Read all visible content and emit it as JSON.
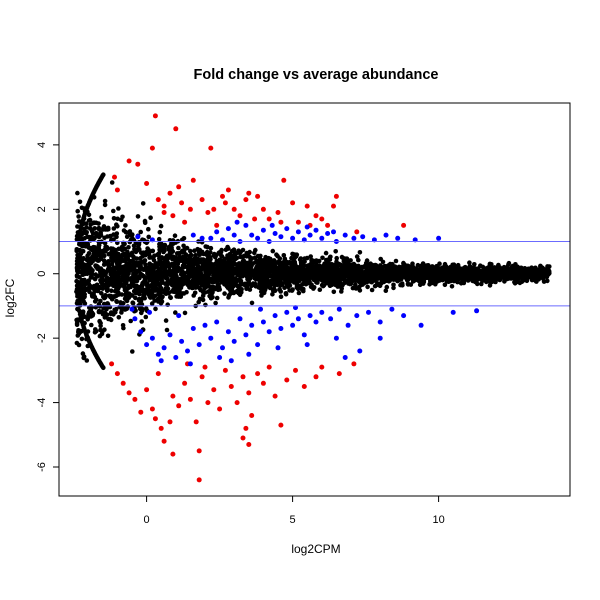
{
  "chart_data": {
    "type": "scatter",
    "title": "Fold change vs average abundance",
    "xlabel": "log2CPM",
    "ylabel": "log2FC",
    "xlim": [
      -3,
      14.5
    ],
    "ylim": [
      -6.9,
      5.3
    ],
    "x_ticks": [
      0,
      5,
      10
    ],
    "y_ticks": [
      -6,
      -4,
      -2,
      0,
      2,
      4
    ],
    "x_tick_labels": [
      "0",
      "5",
      "10"
    ],
    "y_tick_labels": [
      "-6",
      "-4",
      "-2",
      "0",
      "2",
      "4"
    ],
    "hlines": [
      1,
      -1
    ],
    "hline_color": "#6b6bff",
    "grid": false,
    "legend": "none",
    "colors": {
      "ns": "#000000",
      "fc_sig": "#0000ff",
      "strong": "#ee0000"
    },
    "groups": [
      {
        "key": "ns",
        "description_visible": false
      },
      {
        "key": "fc_sig",
        "description_visible": false
      },
      {
        "key": "strong",
        "description_visible": false
      }
    ],
    "series": [
      {
        "color_key": "strong",
        "points": [
          [
            -1.1,
            3.0
          ],
          [
            -1.0,
            2.6
          ],
          [
            -0.6,
            3.5
          ],
          [
            -0.3,
            3.4
          ],
          [
            0.2,
            3.9
          ],
          [
            0.3,
            4.9
          ],
          [
            1.0,
            4.5
          ],
          [
            2.2,
            3.9
          ],
          [
            0.0,
            2.8
          ],
          [
            0.4,
            2.3
          ],
          [
            0.6,
            2.1
          ],
          [
            0.8,
            2.5
          ],
          [
            1.1,
            2.7
          ],
          [
            1.2,
            2.2
          ],
          [
            1.5,
            2.0
          ],
          [
            1.6,
            2.9
          ],
          [
            1.9,
            2.3
          ],
          [
            2.1,
            1.9
          ],
          [
            2.3,
            2.0
          ],
          [
            2.6,
            2.4
          ],
          [
            2.8,
            2.6
          ],
          [
            3.0,
            2.0
          ],
          [
            3.2,
            1.8
          ],
          [
            3.4,
            2.3
          ],
          [
            3.5,
            2.5
          ],
          [
            3.8,
            2.4
          ],
          [
            4.0,
            2.0
          ],
          [
            4.2,
            1.7
          ],
          [
            4.5,
            1.9
          ],
          [
            4.7,
            2.9
          ],
          [
            5.0,
            2.2
          ],
          [
            5.2,
            1.6
          ],
          [
            5.5,
            2.1
          ],
          [
            5.8,
            1.8
          ],
          [
            6.0,
            1.7
          ],
          [
            6.2,
            1.5
          ],
          [
            6.4,
            2.1
          ],
          [
            6.5,
            2.4
          ],
          [
            7.2,
            1.3
          ],
          [
            8.8,
            1.5
          ],
          [
            4.6,
            1.6
          ],
          [
            3.7,
            1.7
          ],
          [
            2.4,
            1.5
          ],
          [
            1.3,
            1.6
          ],
          [
            0.6,
            1.9
          ],
          [
            0.9,
            1.8
          ],
          [
            2.7,
            2.2
          ],
          [
            5.6,
            1.5
          ],
          [
            -1.2,
            -2.8
          ],
          [
            -1.0,
            -3.1
          ],
          [
            -0.8,
            -3.4
          ],
          [
            -0.6,
            -3.7
          ],
          [
            -0.4,
            -3.9
          ],
          [
            -0.2,
            -4.3
          ],
          [
            0.0,
            -3.6
          ],
          [
            0.3,
            -4.5
          ],
          [
            0.5,
            -4.8
          ],
          [
            0.8,
            -4.6
          ],
          [
            0.9,
            -3.8
          ],
          [
            1.1,
            -4.1
          ],
          [
            1.3,
            -3.4
          ],
          [
            1.5,
            -3.9
          ],
          [
            1.7,
            -4.6
          ],
          [
            1.9,
            -3.2
          ],
          [
            2.1,
            -4.0
          ],
          [
            2.3,
            -3.6
          ],
          [
            2.5,
            -4.2
          ],
          [
            2.7,
            -3.0
          ],
          [
            2.9,
            -3.5
          ],
          [
            3.1,
            -4.0
          ],
          [
            3.3,
            -3.2
          ],
          [
            3.5,
            -3.7
          ],
          [
            3.6,
            -4.4
          ],
          [
            3.8,
            -3.1
          ],
          [
            4.0,
            -3.4
          ],
          [
            4.2,
            -2.9
          ],
          [
            4.4,
            -3.8
          ],
          [
            4.6,
            -4.7
          ],
          [
            4.8,
            -3.3
          ],
          [
            5.1,
            -3.0
          ],
          [
            5.4,
            -3.5
          ],
          [
            5.8,
            -3.2
          ],
          [
            6.0,
            -2.9
          ],
          [
            6.6,
            -3.1
          ],
          [
            7.1,
            -2.8
          ],
          [
            0.6,
            -5.2
          ],
          [
            0.9,
            -5.6
          ],
          [
            1.8,
            -5.5
          ],
          [
            3.3,
            -5.1
          ],
          [
            3.4,
            -4.8
          ],
          [
            3.5,
            -5.3
          ],
          [
            1.8,
            -6.4
          ],
          [
            0.2,
            -4.2
          ],
          [
            2.0,
            -2.9
          ],
          [
            1.4,
            -2.8
          ],
          [
            0.4,
            -3.1
          ]
        ]
      },
      {
        "color_key": "fc_sig",
        "points": [
          [
            2.2,
            1.1
          ],
          [
            2.4,
            1.3
          ],
          [
            2.6,
            1.05
          ],
          [
            2.8,
            1.4
          ],
          [
            3.0,
            1.2
          ],
          [
            3.2,
            1.0
          ],
          [
            3.4,
            1.5
          ],
          [
            3.6,
            1.2
          ],
          [
            3.8,
            1.1
          ],
          [
            4.0,
            1.35
          ],
          [
            4.2,
            1.0
          ],
          [
            4.4,
            1.25
          ],
          [
            4.6,
            1.15
          ],
          [
            4.8,
            1.4
          ],
          [
            5.0,
            1.1
          ],
          [
            5.2,
            1.3
          ],
          [
            5.4,
            1.05
          ],
          [
            5.6,
            1.2
          ],
          [
            5.8,
            1.35
          ],
          [
            6.0,
            1.1
          ],
          [
            6.2,
            1.25
          ],
          [
            6.5,
            1.0
          ],
          [
            6.8,
            1.2
          ],
          [
            7.1,
            1.1
          ],
          [
            7.4,
            1.15
          ],
          [
            7.8,
            1.05
          ],
          [
            8.2,
            1.2
          ],
          [
            8.6,
            1.1
          ],
          [
            9.2,
            1.05
          ],
          [
            10.0,
            1.1
          ],
          [
            -0.3,
            1.15
          ],
          [
            0.2,
            1.05
          ],
          [
            1.6,
            1.2
          ],
          [
            1.9,
            1.1
          ],
          [
            3.1,
            1.6
          ],
          [
            4.3,
            1.5
          ],
          [
            5.5,
            1.45
          ],
          [
            6.4,
            1.3
          ],
          [
            -0.4,
            -1.4
          ],
          [
            -0.2,
            -1.8
          ],
          [
            0.0,
            -2.2
          ],
          [
            0.2,
            -2.0
          ],
          [
            0.4,
            -2.5
          ],
          [
            0.6,
            -2.3
          ],
          [
            0.8,
            -1.9
          ],
          [
            1.0,
            -2.6
          ],
          [
            1.2,
            -2.1
          ],
          [
            1.4,
            -2.4
          ],
          [
            1.6,
            -1.7
          ],
          [
            1.8,
            -2.2
          ],
          [
            2.0,
            -1.6
          ],
          [
            2.2,
            -2.0
          ],
          [
            2.4,
            -1.5
          ],
          [
            2.6,
            -2.3
          ],
          [
            2.8,
            -1.8
          ],
          [
            3.0,
            -2.1
          ],
          [
            3.2,
            -1.4
          ],
          [
            3.4,
            -1.9
          ],
          [
            3.6,
            -1.6
          ],
          [
            3.8,
            -2.2
          ],
          [
            4.0,
            -1.5
          ],
          [
            4.2,
            -1.8
          ],
          [
            4.4,
            -1.3
          ],
          [
            4.6,
            -1.7
          ],
          [
            4.8,
            -1.2
          ],
          [
            5.0,
            -1.6
          ],
          [
            5.2,
            -1.4
          ],
          [
            5.4,
            -1.9
          ],
          [
            5.6,
            -1.3
          ],
          [
            5.8,
            -1.5
          ],
          [
            6.0,
            -1.2
          ],
          [
            6.3,
            -1.4
          ],
          [
            6.6,
            -1.1
          ],
          [
            6.9,
            -1.6
          ],
          [
            7.2,
            -1.3
          ],
          [
            7.6,
            -1.2
          ],
          [
            8.0,
            -1.5
          ],
          [
            8.4,
            -1.1
          ],
          [
            8.8,
            -1.3
          ],
          [
            9.4,
            -1.6
          ],
          [
            10.5,
            -1.2
          ],
          [
            11.3,
            -1.15
          ],
          [
            0.5,
            -2.7
          ],
          [
            1.5,
            -2.8
          ],
          [
            2.5,
            -2.6
          ],
          [
            3.5,
            -2.5
          ],
          [
            4.5,
            -2.3
          ],
          [
            5.5,
            -2.2
          ],
          [
            6.5,
            -2.0
          ],
          [
            7.3,
            -2.4
          ],
          [
            8.0,
            -2.0
          ],
          [
            6.8,
            -2.6
          ],
          [
            2.9,
            -2.7
          ],
          [
            1.1,
            -1.3
          ],
          [
            0.1,
            -1.2
          ],
          [
            -0.5,
            -1.1
          ],
          [
            3.9,
            -1.1
          ],
          [
            5.1,
            -1.05
          ]
        ]
      }
    ],
    "dense_band": {
      "color_key": "ns",
      "description": "",
      "x_range": [
        -2.4,
        13.8
      ],
      "center": 0
    }
  }
}
